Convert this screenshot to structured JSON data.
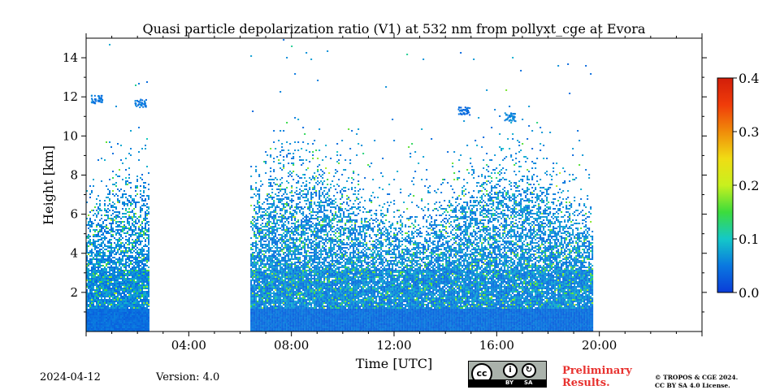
{
  "chart_data": {
    "type": "heatmap",
    "title": "Quasi particle depolarization ratio (V1) at 532 nm from pollyxt_cge at Evora",
    "xlabel": "Time [UTC]",
    "ylabel": "Height [km]",
    "xlim_hours": [
      0,
      24
    ],
    "ylim_km": [
      0,
      15
    ],
    "x_ticks": [
      {
        "hour": 4,
        "label": "04:00"
      },
      {
        "hour": 8,
        "label": "08:00"
      },
      {
        "hour": 12,
        "label": "12:00"
      },
      {
        "hour": 16,
        "label": "16:00"
      },
      {
        "hour": 20,
        "label": "20:00"
      }
    ],
    "y_ticks": [
      {
        "km": 2,
        "label": "2"
      },
      {
        "km": 4,
        "label": "4"
      },
      {
        "km": 6,
        "label": "6"
      },
      {
        "km": 8,
        "label": "8"
      },
      {
        "km": 10,
        "label": "10"
      },
      {
        "km": 12,
        "label": "12"
      },
      {
        "km": 14,
        "label": "14"
      }
    ],
    "colorbar": {
      "min": 0.0,
      "max": 0.4,
      "ticks": [
        {
          "value": 0.0,
          "label": "0.0"
        },
        {
          "value": 0.1,
          "label": "0.1"
        },
        {
          "value": 0.2,
          "label": "0.2"
        },
        {
          "value": 0.3,
          "label": "0.3"
        },
        {
          "value": 0.4,
          "label": "0.4"
        }
      ],
      "colormap": [
        "#0a3cd8",
        "#0a78e0",
        "#14c8c8",
        "#3cdc3c",
        "#c8f01e",
        "#f0dc14",
        "#f08c0a",
        "#f03c0a",
        "#d21e0a"
      ]
    },
    "data_periods_hours": [
      [
        0.0,
        2.45
      ],
      [
        6.4,
        19.75
      ]
    ],
    "cloud_patches": [
      {
        "hour": 0.4,
        "km": 11.9,
        "value": 0.05
      },
      {
        "hour": 2.1,
        "km": 11.7,
        "value": 0.05
      },
      {
        "hour": 14.7,
        "km": 11.3,
        "value": 0.04
      },
      {
        "hour": 16.5,
        "km": 11.0,
        "value": 0.06
      }
    ]
  },
  "footer": {
    "date": "2024-04-12",
    "version": "Version: 4.0",
    "prelim_line1": "Preliminary",
    "prelim_line2": "Results.",
    "copyright_line1": "© TROPOS & CGE 2024.",
    "copyright_line2": "CC BY SA 4.0 License.",
    "license_by": "BY",
    "license_sa": "SA"
  }
}
